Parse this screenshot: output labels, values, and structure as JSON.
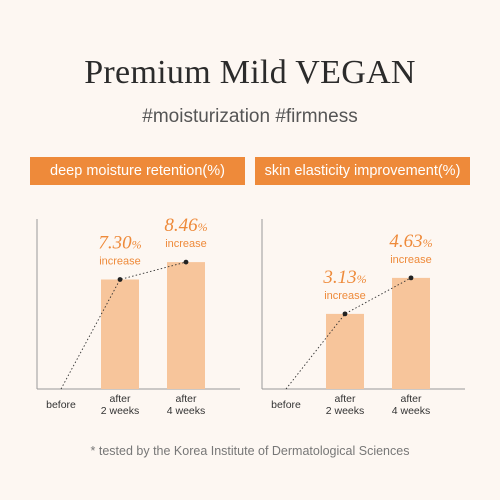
{
  "title": "Premium Mild VEGAN",
  "subtitle": "#moisturization #firmness",
  "footnote": "* tested by the Korea Institute of Dermatological Sciences",
  "colors": {
    "accent": "#ee8a3a",
    "bar": "#f7c59b",
    "text": "#2b2b2b",
    "annotation": "#ee8a3a"
  },
  "chart_data": [
    {
      "type": "bar",
      "title": "deep moisture retention(%)",
      "categories": [
        "before",
        "after\n2 weeks",
        "after\n4 weeks"
      ],
      "values": [
        0,
        7.3,
        8.46
      ],
      "annotations": [
        {
          "category": "after\n2 weeks",
          "value": "7.30",
          "unit": "%",
          "note": "increase"
        },
        {
          "category": "after\n4 weeks",
          "value": "8.46",
          "unit": "%",
          "note": "increase"
        }
      ],
      "ylim": [
        0,
        12
      ],
      "trend_line": "dotted"
    },
    {
      "type": "bar",
      "title": "skin elasticity improvement(%)",
      "categories": [
        "before",
        "after\n2 weeks",
        "after\n4 weeks"
      ],
      "values": [
        0,
        3.13,
        4.63
      ],
      "annotations": [
        {
          "category": "after\n2 weeks",
          "value": "3.13",
          "unit": "%",
          "note": "increase"
        },
        {
          "category": "after\n4 weeks",
          "value": "4.63",
          "unit": "%",
          "note": "increase"
        }
      ],
      "ylim": [
        0,
        7.5
      ],
      "trend_line": "dotted"
    }
  ]
}
